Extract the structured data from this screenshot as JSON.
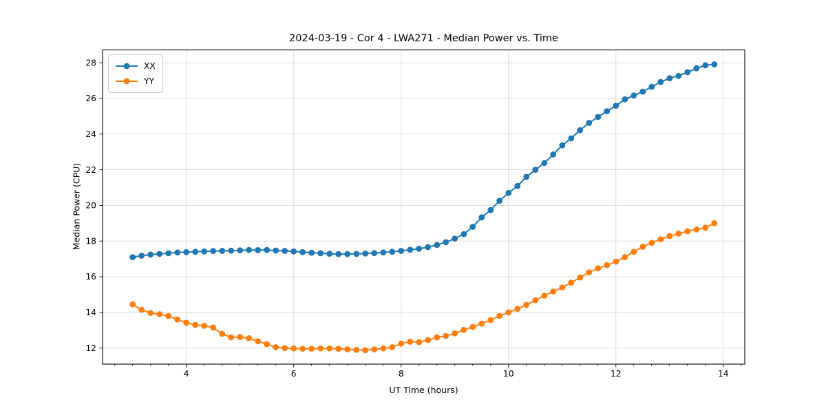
{
  "title": "2024-03-19 - Cor 4 - LWA271 - Median Power vs. Time",
  "colors": {
    "xx_series": "#1f77b4",
    "yy_series": "#ff7f0e",
    "grid": "#d9d9d9",
    "spine": "#000000",
    "background": "#ffffff"
  },
  "legend": {
    "items": [
      {
        "label": "XX"
      },
      {
        "label": "YY"
      }
    ]
  },
  "chart_data": {
    "type": "line",
    "title": "2024-03-19 - Cor 4 - LWA271 - Median Power vs. Time",
    "xlabel": "UT Time (hours)",
    "ylabel": "Median Power (CPU)",
    "xlim": [
      2.44,
      14.4
    ],
    "ylim": [
      11.1,
      28.72
    ],
    "x_ticks": [
      4,
      6,
      8,
      10,
      12,
      14
    ],
    "y_ticks": [
      12,
      14,
      16,
      18,
      20,
      22,
      24,
      26,
      28
    ],
    "x_minor_step": 0.3333,
    "grid": true,
    "legend_position": "upper left",
    "marker": "o",
    "x": [
      3,
      3.167,
      3.333,
      3.5,
      3.667,
      3.833,
      4,
      4.167,
      4.333,
      4.5,
      4.667,
      4.833,
      5,
      5.167,
      5.333,
      5.5,
      5.667,
      5.833,
      6,
      6.167,
      6.333,
      6.5,
      6.667,
      6.833,
      7,
      7.167,
      7.333,
      7.5,
      7.667,
      7.833,
      8,
      8.167,
      8.333,
      8.5,
      8.667,
      8.833,
      9,
      9.167,
      9.333,
      9.5,
      9.667,
      9.833,
      10,
      10.167,
      10.333,
      10.5,
      10.667,
      10.833,
      11,
      11.167,
      11.333,
      11.5,
      11.667,
      11.833,
      12,
      12.167,
      12.333,
      12.5,
      12.667,
      12.833,
      13,
      13.167,
      13.333,
      13.5,
      13.667,
      13.833
    ],
    "series": [
      {
        "name": "XX",
        "color": "#1f77b4",
        "values": [
          17.1,
          17.18,
          17.24,
          17.28,
          17.32,
          17.36,
          17.38,
          17.4,
          17.42,
          17.44,
          17.45,
          17.46,
          17.48,
          17.5,
          17.49,
          17.5,
          17.47,
          17.45,
          17.42,
          17.38,
          17.35,
          17.32,
          17.29,
          17.27,
          17.27,
          17.28,
          17.3,
          17.33,
          17.36,
          17.4,
          17.45,
          17.51,
          17.57,
          17.66,
          17.78,
          17.94,
          18.14,
          18.39,
          18.8,
          19.33,
          19.74,
          20.26,
          20.7,
          21.09,
          21.6,
          22.0,
          22.38,
          22.86,
          23.37,
          23.76,
          24.22,
          24.63,
          24.96,
          25.28,
          25.59,
          25.95,
          26.16,
          26.38,
          26.65,
          26.92,
          27.13,
          27.26,
          27.47,
          27.69,
          27.86,
          27.91
        ]
      },
      {
        "name": "YY",
        "color": "#ff7f0e",
        "values": [
          14.45,
          14.15,
          13.97,
          13.9,
          13.8,
          13.6,
          13.42,
          13.3,
          13.25,
          13.15,
          12.8,
          12.6,
          12.62,
          12.55,
          12.38,
          12.22,
          12.05,
          12.0,
          11.98,
          11.96,
          11.96,
          11.98,
          11.98,
          11.96,
          11.93,
          11.9,
          11.88,
          11.93,
          11.98,
          12.05,
          12.25,
          12.36,
          12.33,
          12.45,
          12.6,
          12.68,
          12.82,
          13.02,
          13.19,
          13.37,
          13.57,
          13.8,
          14.0,
          14.2,
          14.42,
          14.68,
          14.94,
          15.17,
          15.4,
          15.67,
          15.96,
          16.25,
          16.47,
          16.65,
          16.85,
          17.1,
          17.4,
          17.68,
          17.9,
          18.1,
          18.28,
          18.42,
          18.55,
          18.65,
          18.75,
          19.0
        ]
      }
    ]
  }
}
